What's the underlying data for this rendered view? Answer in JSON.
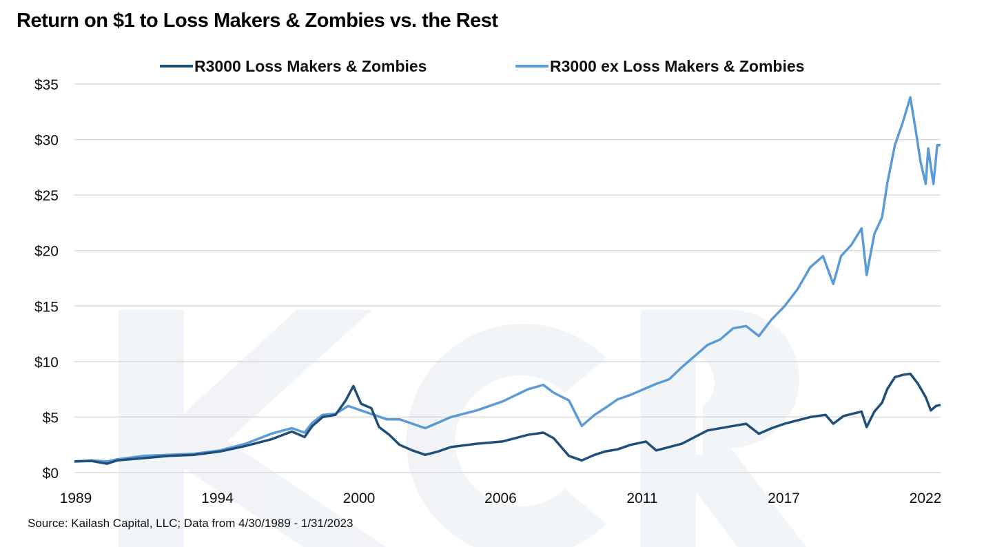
{
  "chart_data": {
    "type": "line",
    "title": "Return on $1 to Loss Makers & Zombies vs. the Rest",
    "source": "Source: Kailash Capital, LLC; Data from 4/30/1989 - 1/31/2023",
    "watermark": "KCR",
    "legend_placement": "top",
    "grid": "horizontal",
    "ylim": [
      0,
      35
    ],
    "yticks": [
      0,
      5,
      10,
      15,
      20,
      25,
      30,
      35
    ],
    "ytick_labels": [
      "$0",
      "$5",
      "$10",
      "$15",
      "$20",
      "$25",
      "$30",
      "$35"
    ],
    "xlim": [
      1989.33,
      2023.08
    ],
    "xtick_labels": [
      "1989",
      "1994",
      "2000",
      "2006",
      "2011",
      "2017",
      "2022"
    ],
    "series": [
      {
        "name": "R3000 Loss Makers & Zombies",
        "color": "#1f4e79",
        "x": [
          1989.33,
          1990,
          1990.6,
          1991,
          1992,
          1993,
          1994,
          1995,
          1996,
          1997,
          1997.8,
          1998.3,
          1998.6,
          1999,
          1999.5,
          1999.9,
          2000.2,
          2000.5,
          2000.9,
          2001.2,
          2001.6,
          2002,
          2002.5,
          2003,
          2003.5,
          2004,
          2005,
          2006,
          2007,
          2007.6,
          2008,
          2008.6,
          2009.1,
          2009.6,
          2010,
          2010.5,
          2011,
          2011.6,
          2012,
          2012.5,
          2013,
          2013.5,
          2014,
          2015,
          2015.5,
          2016,
          2016.5,
          2017,
          2018,
          2018.6,
          2018.9,
          2019.3,
          2020,
          2020.2,
          2020.5,
          2020.8,
          2021,
          2021.3,
          2021.6,
          2021.9,
          2022.2,
          2022.5,
          2022.7,
          2022.9,
          2023.08
        ],
        "y": [
          1,
          1.05,
          0.8,
          1.1,
          1.3,
          1.5,
          1.6,
          1.9,
          2.4,
          3.0,
          3.7,
          3.2,
          4.2,
          5.0,
          5.2,
          6.5,
          7.8,
          6.2,
          5.8,
          4.1,
          3.4,
          2.5,
          2.0,
          1.6,
          1.9,
          2.3,
          2.6,
          2.8,
          3.4,
          3.6,
          3.1,
          1.5,
          1.1,
          1.6,
          1.9,
          2.1,
          2.5,
          2.8,
          2.0,
          2.3,
          2.6,
          3.2,
          3.8,
          4.2,
          4.4,
          3.5,
          4.0,
          4.4,
          5.0,
          5.2,
          4.4,
          5.1,
          5.5,
          4.1,
          5.5,
          6.3,
          7.5,
          8.6,
          8.8,
          8.9,
          8.0,
          6.8,
          5.6,
          6.0,
          6.1
        ]
      },
      {
        "name": "R3000 ex Loss Makers & Zombies",
        "color": "#5b9bd5",
        "x": [
          1989.33,
          1990,
          1990.6,
          1991,
          1992,
          1993,
          1994,
          1995,
          1996,
          1997,
          1997.8,
          1998.3,
          1998.6,
          1999,
          1999.5,
          2000,
          2000.5,
          2001,
          2001.5,
          2002,
          2002.5,
          2003,
          2003.5,
          2004,
          2005,
          2006,
          2007,
          2007.6,
          2008,
          2008.6,
          2009.1,
          2009.6,
          2010,
          2010.5,
          2011,
          2011.5,
          2012,
          2012.5,
          2013,
          2014,
          2014.5,
          2015,
          2015.5,
          2016,
          2016.5,
          2017,
          2017.5,
          2018,
          2018.5,
          2018.9,
          2019.2,
          2019.6,
          2020,
          2020.2,
          2020.5,
          2020.8,
          2021,
          2021.3,
          2021.6,
          2021.9,
          2022.1,
          2022.3,
          2022.5,
          2022.6,
          2022.8,
          2022.95,
          2023.08
        ],
        "y": [
          1,
          1.1,
          1.0,
          1.2,
          1.5,
          1.6,
          1.7,
          2.0,
          2.6,
          3.5,
          4.0,
          3.6,
          4.5,
          5.2,
          5.3,
          6.0,
          5.6,
          5.2,
          4.8,
          4.8,
          4.4,
          4.0,
          4.5,
          5.0,
          5.6,
          6.4,
          7.5,
          7.9,
          7.2,
          6.5,
          4.2,
          5.2,
          5.8,
          6.6,
          7.0,
          7.5,
          8.0,
          8.4,
          9.5,
          11.5,
          12.0,
          13.0,
          13.2,
          12.3,
          13.8,
          15.0,
          16.5,
          18.5,
          19.5,
          17.0,
          19.5,
          20.5,
          22.0,
          17.8,
          21.5,
          23.0,
          26.0,
          29.5,
          31.5,
          33.8,
          31.0,
          28.0,
          26.0,
          29.2,
          26.0,
          29.5,
          29.5
        ]
      }
    ]
  }
}
